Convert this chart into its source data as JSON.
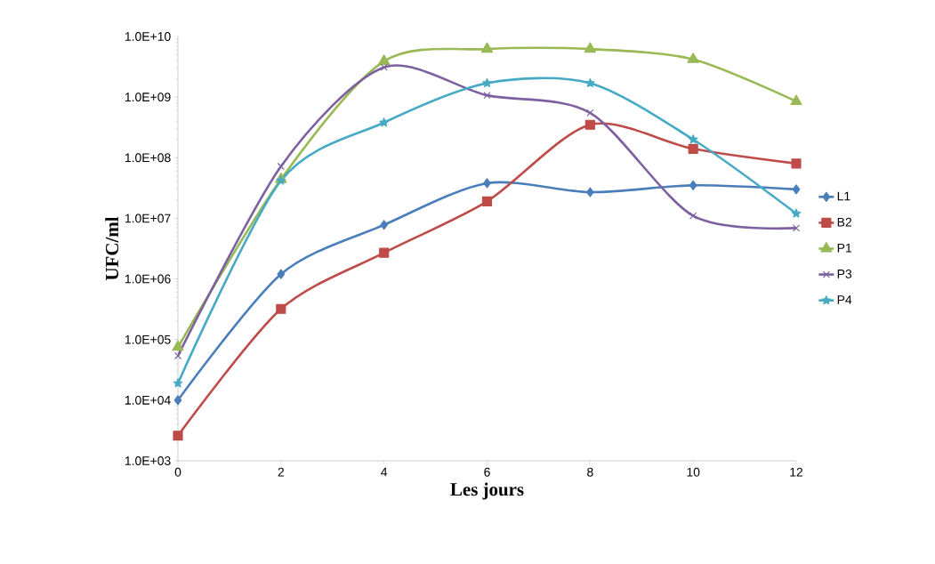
{
  "chart_data": {
    "type": "line",
    "xlabel": "Les jours",
    "ylabel": "UFC/ml",
    "x": [
      0,
      2,
      4,
      6,
      8,
      10,
      12
    ],
    "series": [
      {
        "name": "L1",
        "color": "#4a7ebb",
        "marker": "diamond",
        "values": [
          10000,
          1200000,
          7800000,
          38000000,
          27000000,
          35000000,
          30000000
        ]
      },
      {
        "name": "B2",
        "color": "#be4b48",
        "marker": "square",
        "values": [
          2600,
          320000,
          2700000,
          19000000,
          350000000,
          140000000,
          80000000
        ]
      },
      {
        "name": "P1",
        "color": "#98b954",
        "marker": "triangle",
        "values": [
          75000,
          44000000,
          3900000000,
          6200000000,
          6200000000,
          4200000000,
          850000000
        ]
      },
      {
        "name": "P3",
        "color": "#7d60a0",
        "marker": "cross",
        "values": [
          54000,
          72000000,
          3100000000,
          1070000000,
          550000000,
          11000000,
          6900000
        ]
      },
      {
        "name": "P4",
        "color": "#46aac5",
        "marker": "star",
        "values": [
          19000,
          42000000,
          380000000,
          1700000000,
          1700000000,
          200000000,
          12000000
        ]
      }
    ],
    "log": "y",
    "xlim": [
      0,
      12
    ],
    "ylim": [
      1000,
      10000000000
    ],
    "xticks": [
      0,
      2,
      4,
      6,
      8,
      10,
      12
    ],
    "yticks": [
      {
        "value": 1000,
        "label": "1.0E+03"
      },
      {
        "value": 10000,
        "label": "1.0E+04"
      },
      {
        "value": 100000,
        "label": "1.0E+05"
      },
      {
        "value": 1000000,
        "label": "1.0E+06"
      },
      {
        "value": 10000000,
        "label": "1.0E+07"
      },
      {
        "value": 100000000,
        "label": "1.0E+08"
      },
      {
        "value": 1000000000,
        "label": "1.0E+09"
      },
      {
        "value": 10000000000,
        "label": "1.0E+10"
      }
    ],
    "legend": "right",
    "grid": false,
    "line_style": "solid"
  }
}
